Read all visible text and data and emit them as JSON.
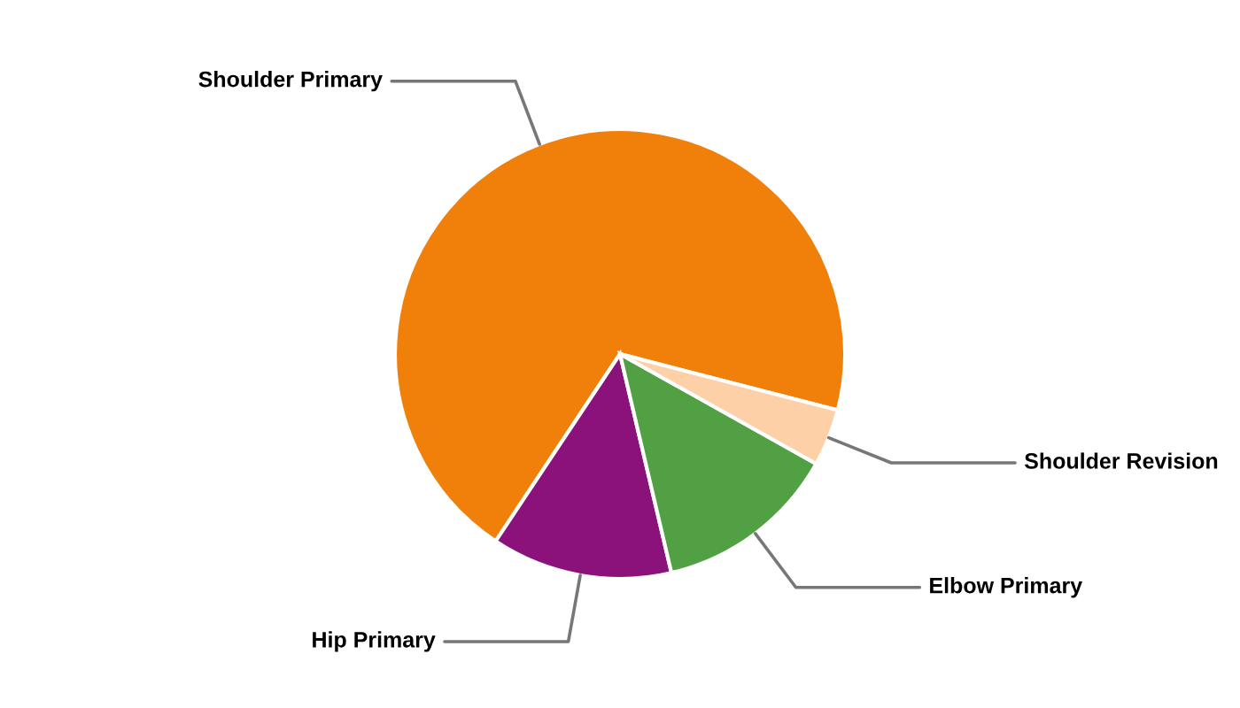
{
  "chart_data": {
    "type": "pie",
    "categories": [
      "Shoulder Primary",
      "Hip Primary",
      "Elbow Primary",
      "Shoulder Revision"
    ],
    "values": [
      69.7,
      13.0,
      13.2,
      4.1
    ],
    "colors": [
      "#f0800a",
      "#8a127a",
      "#52a044",
      "#fdd0a8"
    ],
    "legend": false
  }
}
